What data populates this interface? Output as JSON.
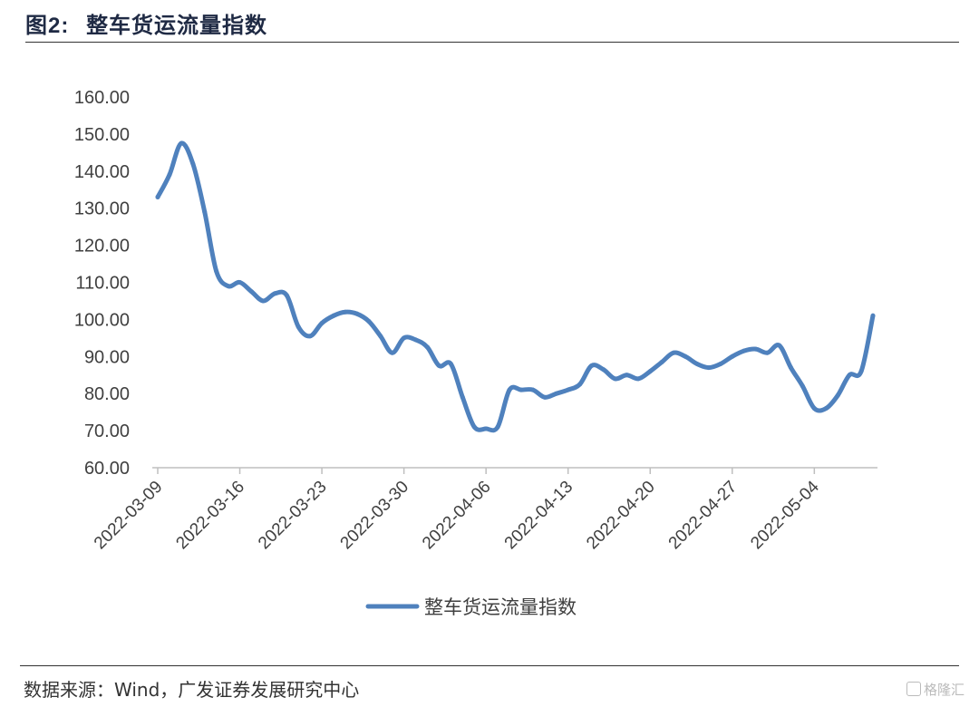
{
  "header": {
    "title_prefix": "图",
    "title_number": "2:",
    "title_text": "整车货运流量指数"
  },
  "footer": {
    "source": "数据来源：Wind，广发证券发展研究中心",
    "watermark": "格隆汇"
  },
  "chart_data": {
    "type": "line",
    "title": "",
    "xlabel": "",
    "ylabel": "",
    "ylim": [
      60,
      160
    ],
    "yticks": [
      "60.00",
      "70.00",
      "80.00",
      "90.00",
      "100.00",
      "110.00",
      "120.00",
      "130.00",
      "140.00",
      "150.00",
      "160.00"
    ],
    "xticks": [
      "2022-03-09",
      "2022-03-16",
      "2022-03-23",
      "2022-03-30",
      "2022-04-06",
      "2022-04-13",
      "2022-04-20",
      "2022-04-27",
      "2022-05-04"
    ],
    "x_start": "2022-03-09",
    "x_end": "2022-05-09",
    "legend_position": "bottom-center",
    "grid": false,
    "series": [
      {
        "name": "整车货运流量指数",
        "color": "#4f81bd",
        "x": [
          "2022-03-09",
          "2022-03-10",
          "2022-03-11",
          "2022-03-12",
          "2022-03-13",
          "2022-03-14",
          "2022-03-15",
          "2022-03-16",
          "2022-03-17",
          "2022-03-18",
          "2022-03-19",
          "2022-03-20",
          "2022-03-21",
          "2022-03-22",
          "2022-03-23",
          "2022-03-24",
          "2022-03-25",
          "2022-03-26",
          "2022-03-27",
          "2022-03-28",
          "2022-03-29",
          "2022-03-30",
          "2022-03-31",
          "2022-04-01",
          "2022-04-02",
          "2022-04-03",
          "2022-04-04",
          "2022-04-05",
          "2022-04-06",
          "2022-04-07",
          "2022-04-08",
          "2022-04-09",
          "2022-04-10",
          "2022-04-11",
          "2022-04-12",
          "2022-04-13",
          "2022-04-14",
          "2022-04-15",
          "2022-04-16",
          "2022-04-17",
          "2022-04-18",
          "2022-04-19",
          "2022-04-20",
          "2022-04-21",
          "2022-04-22",
          "2022-04-23",
          "2022-04-24",
          "2022-04-25",
          "2022-04-26",
          "2022-04-27",
          "2022-04-28",
          "2022-04-29",
          "2022-04-30",
          "2022-05-01",
          "2022-05-02",
          "2022-05-03",
          "2022-05-04",
          "2022-05-05",
          "2022-05-06",
          "2022-05-07",
          "2022-05-08",
          "2022-05-09"
        ],
        "values": [
          133,
          139,
          147.5,
          142,
          129,
          113,
          109,
          110,
          107.5,
          105,
          107,
          106.5,
          98,
          95.5,
          99,
          101,
          102,
          101.5,
          99.5,
          95.5,
          91,
          95,
          94.5,
          92.5,
          87.5,
          88,
          79,
          71,
          70.5,
          71,
          81,
          81,
          81,
          79,
          80,
          81,
          82.5,
          87.5,
          86.5,
          84,
          85,
          84,
          86,
          88.5,
          91,
          90,
          88,
          87,
          88,
          90,
          91.5,
          92,
          91,
          93,
          87,
          82,
          76,
          76,
          79.5,
          85,
          86,
          101
        ]
      }
    ]
  }
}
